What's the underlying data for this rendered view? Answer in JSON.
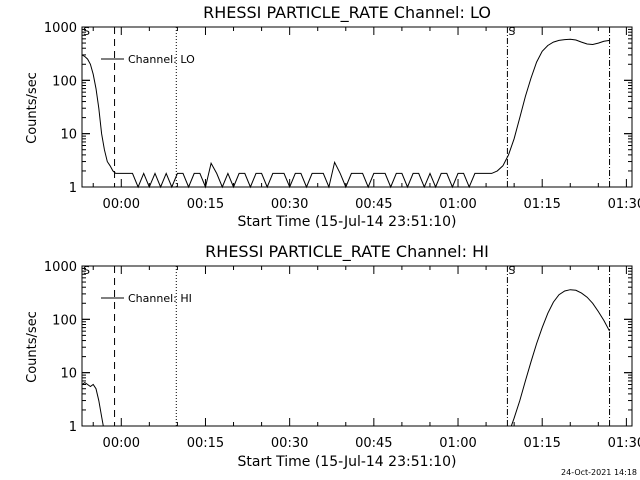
{
  "chart_data": [
    {
      "type": "line",
      "title": "RHESSI PARTICLE_RATE Channel: LO",
      "xlabel": "Start Time (15-Jul-14 23:51:10)",
      "ylabel": "Counts/sec",
      "yscale": "log",
      "ylim": [
        1,
        1000
      ],
      "xlim_minutes": [
        -7,
        91
      ],
      "x_tick_labels": [
        "00:00",
        "00:15",
        "00:30",
        "00:45",
        "01:00",
        "01:15",
        "01:30"
      ],
      "y_tick_labels": [
        "1",
        "10",
        "100",
        "1000"
      ],
      "legend": {
        "entries": [
          "Channel: LO"
        ],
        "placement": "top-left"
      },
      "markers": [
        {
          "type": "dashed",
          "label": "",
          "x_min": -1.2
        },
        {
          "type": "dotted",
          "label": "",
          "x_min": 9.8
        },
        {
          "type": "dashdot",
          "label": "S",
          "x_min": 68.8
        },
        {
          "type": "dashdot",
          "label": "",
          "x_min": 87.0
        }
      ],
      "corner_labels": [
        "S"
      ],
      "series": [
        {
          "name": "Channel: LO",
          "x": [
            -7,
            -6.5,
            -6,
            -5.5,
            -5,
            -4.5,
            -4,
            -3.5,
            -3,
            -2.5,
            -2,
            -1.5,
            -1,
            -0.5,
            0,
            0.5,
            1,
            2,
            3,
            4,
            5,
            6,
            7,
            8,
            9,
            10,
            11,
            12,
            13,
            14,
            15,
            16,
            17,
            18,
            19,
            20,
            21,
            22,
            23,
            24,
            25,
            26,
            27,
            28,
            29,
            30,
            31,
            32,
            33,
            34,
            35,
            36,
            37,
            38,
            39,
            40,
            41,
            42,
            43,
            44,
            45,
            46,
            47,
            48,
            49,
            50,
            51,
            52,
            53,
            54,
            55,
            56,
            57,
            58,
            59,
            60,
            61,
            62,
            63,
            64,
            65,
            66,
            67,
            68,
            69,
            70,
            71,
            72,
            73,
            74,
            75,
            76,
            77,
            78,
            79,
            80,
            81,
            82,
            83,
            84,
            85,
            86,
            87
          ],
          "y": [
            300,
            280,
            250,
            200,
            130,
            70,
            30,
            10,
            5,
            3,
            2.5,
            2,
            1.8,
            1.8,
            1.8,
            1.8,
            1.8,
            1.8,
            1,
            1.8,
            1,
            1.8,
            1,
            1.8,
            1,
            1.8,
            1.8,
            1,
            1.8,
            1.8,
            1,
            2.8,
            1.8,
            1,
            1.8,
            1,
            1.8,
            1.8,
            1,
            1.8,
            1.8,
            1,
            1.8,
            1.8,
            1.8,
            1,
            1.8,
            1.8,
            1,
            1.8,
            1.8,
            1.8,
            1,
            2.9,
            1.8,
            1,
            1.8,
            1.8,
            1.8,
            1,
            1.8,
            1.8,
            1.8,
            1,
            1.8,
            1.8,
            1,
            1.8,
            1.8,
            1,
            1.8,
            1,
            1.8,
            1.8,
            1,
            1.8,
            1.8,
            1,
            1.8,
            1.8,
            1.8,
            1.8,
            2,
            2.5,
            4,
            8,
            20,
            50,
            110,
            220,
            350,
            450,
            520,
            560,
            580,
            590,
            570,
            520,
            480,
            470,
            500,
            540,
            560
          ]
        }
      ]
    },
    {
      "type": "line",
      "title": "RHESSI PARTICLE_RATE Channel: HI",
      "xlabel": "Start Time (15-Jul-14 23:51:10)",
      "ylabel": "Counts/sec",
      "yscale": "log",
      "ylim": [
        1,
        1000
      ],
      "xlim_minutes": [
        -7,
        91
      ],
      "x_tick_labels": [
        "00:00",
        "00:15",
        "00:30",
        "00:45",
        "01:00",
        "01:15",
        "01:30"
      ],
      "y_tick_labels": [
        "1",
        "10",
        "100",
        "1000"
      ],
      "legend": {
        "entries": [
          "Channel: HI"
        ],
        "placement": "top-left"
      },
      "markers": [
        {
          "type": "dashed",
          "label": "",
          "x_min": -1.2
        },
        {
          "type": "dotted",
          "label": "",
          "x_min": 9.8
        },
        {
          "type": "dashdot",
          "label": "S",
          "x_min": 68.8
        },
        {
          "type": "dashdot",
          "label": "",
          "x_min": 87.0
        }
      ],
      "corner_labels": [
        "S"
      ],
      "series": [
        {
          "name": "Channel: HI",
          "x": [
            -7,
            -6.5,
            -6,
            -5.5,
            -5,
            -4.5,
            -4,
            -3.5,
            -3.2,
            69.5,
            70,
            71,
            72,
            73,
            74,
            75,
            76,
            77,
            78,
            79,
            80,
            81,
            82,
            83,
            84,
            85,
            86,
            87
          ],
          "y": [
            6,
            6.5,
            6,
            5.5,
            6,
            5,
            3,
            1.5,
            1,
            1,
            1.4,
            3,
            7,
            16,
            35,
            70,
            130,
            210,
            290,
            340,
            360,
            350,
            310,
            260,
            200,
            140,
            95,
            60
          ]
        }
      ]
    }
  ],
  "footer": {
    "timestamp": "24-Oct-2021 14:18"
  }
}
